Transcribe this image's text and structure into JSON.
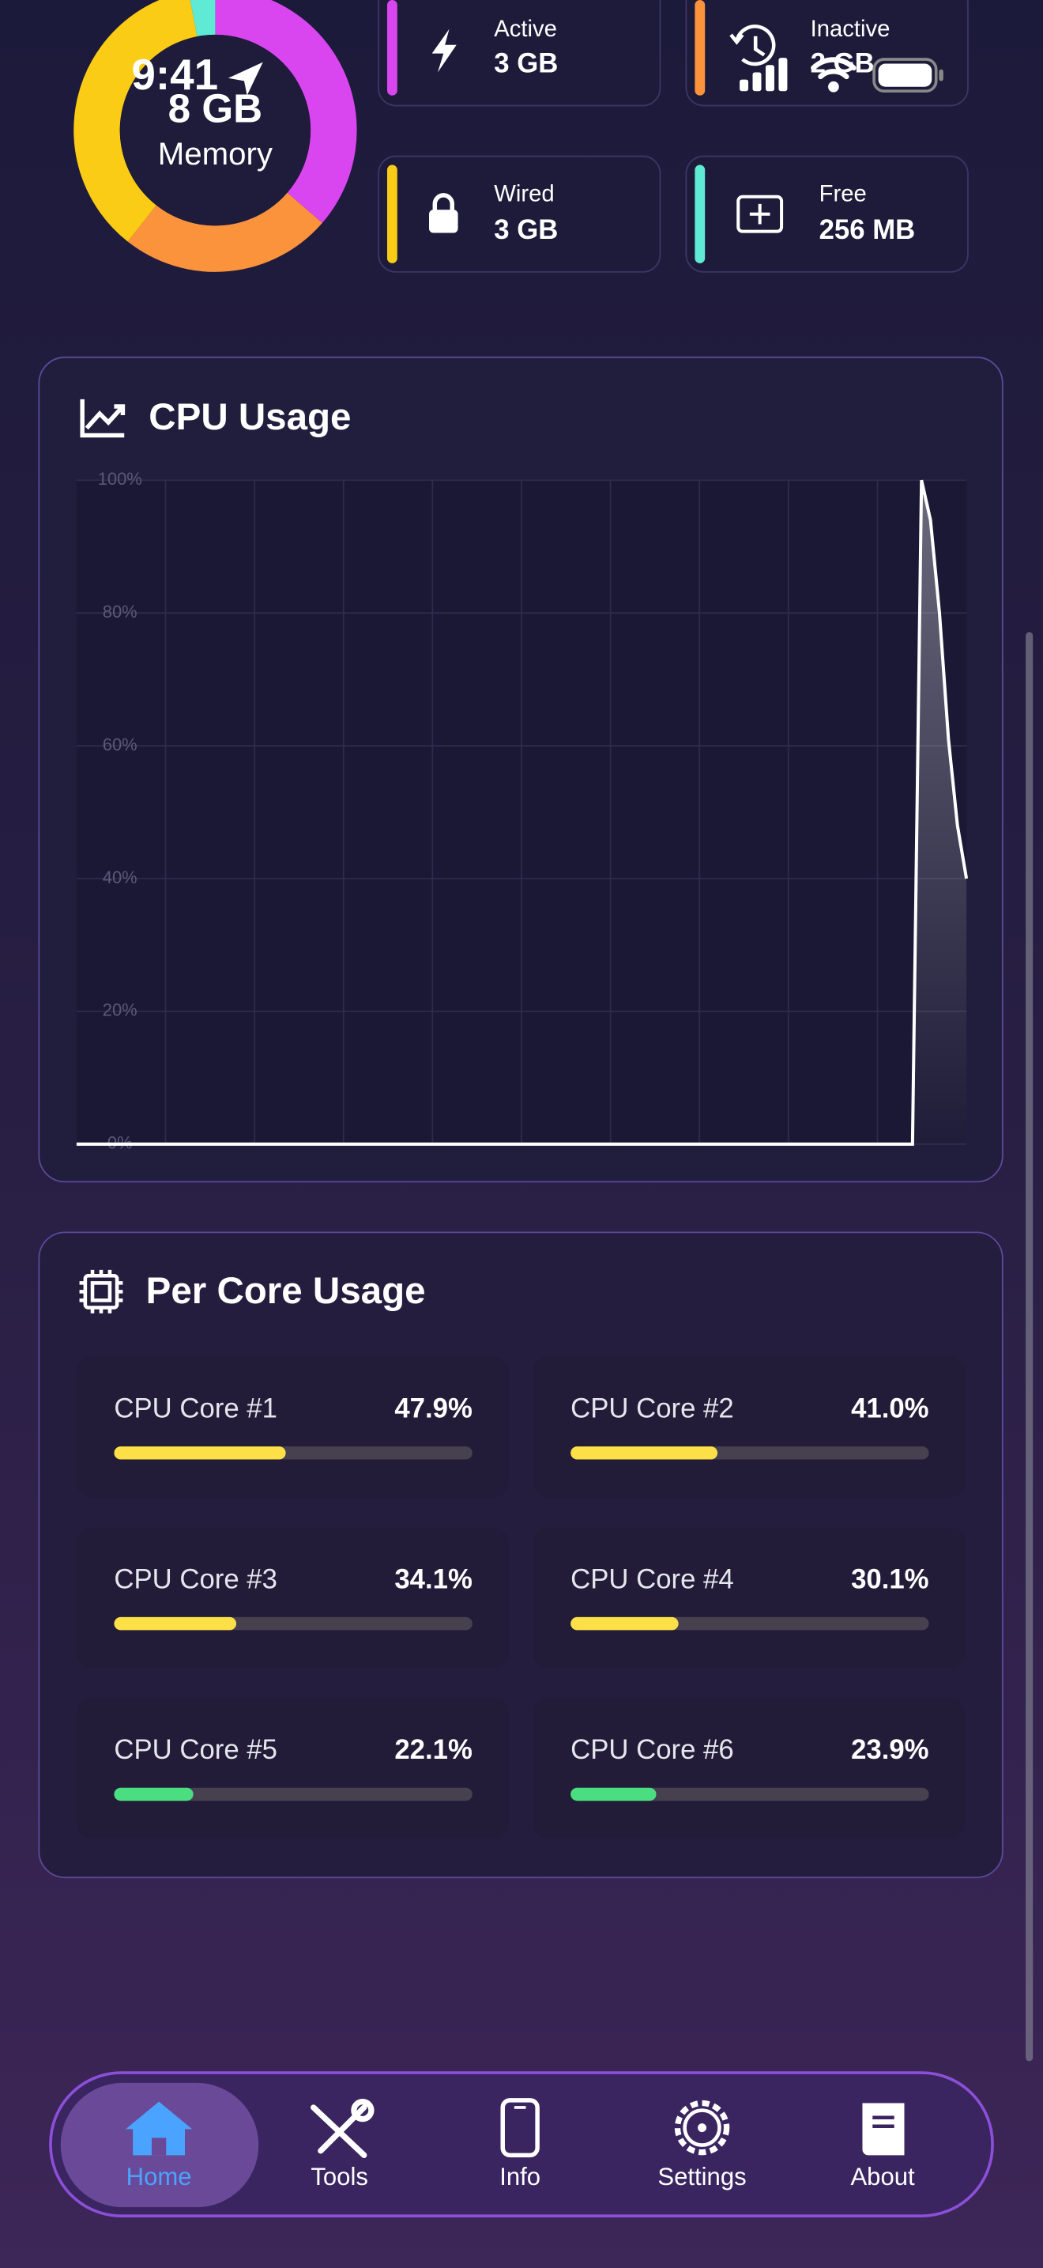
{
  "status_bar": {
    "time": "9:41"
  },
  "memory": {
    "total": "8 GB",
    "label": "Memory",
    "items": [
      {
        "name": "Active",
        "value": 3,
        "value_label": "3 GB",
        "color": "#d946ef"
      },
      {
        "name": "Inactive",
        "value": 2,
        "value_label": "2 GB",
        "color": "#fb923c"
      },
      {
        "name": "Wired",
        "value": 3,
        "value_label": "3 GB",
        "color": "#facc15"
      },
      {
        "name": "Free",
        "value": 0.25,
        "value_label": "256 MB",
        "color": "#5eead4"
      }
    ]
  },
  "chart_data": {
    "type": "area",
    "title": "CPU Usage",
    "color": "#ffffff",
    "grid": true,
    "ylim": [
      0,
      100
    ],
    "yticks": [
      {
        "value": 0,
        "label": "0%"
      },
      {
        "value": 20,
        "label": "20%"
      },
      {
        "value": 40,
        "label": "40%"
      },
      {
        "value": 60,
        "label": "60%"
      },
      {
        "value": 80,
        "label": "80%"
      },
      {
        "value": 100,
        "label": "100%"
      }
    ],
    "values": [
      0,
      0,
      0,
      0,
      0,
      0,
      0,
      0,
      0,
      0,
      0,
      0,
      0,
      0,
      0,
      0,
      0,
      0,
      0,
      0,
      0,
      0,
      0,
      0,
      0,
      0,
      0,
      0,
      0,
      0,
      0,
      0,
      0,
      0,
      0,
      0,
      0,
      0,
      0,
      0,
      0,
      0,
      0,
      0,
      0,
      0,
      0,
      0,
      0,
      0,
      0,
      0,
      0,
      0,
      0,
      0,
      0,
      0,
      0,
      0,
      0,
      0,
      0,
      0,
      0,
      0,
      0,
      0,
      0,
      0,
      0,
      0,
      0,
      0,
      0,
      0,
      0,
      0,
      0,
      0,
      0,
      0,
      0,
      0,
      0,
      0,
      0,
      0,
      0,
      0,
      0,
      0,
      0,
      0,
      100,
      94,
      80,
      61,
      48,
      40
    ]
  },
  "per_core": {
    "title": "Per Core Usage",
    "cores": [
      {
        "name": "CPU Core #1",
        "value": 47.9,
        "value_label": "47.9%",
        "color": "#fde047"
      },
      {
        "name": "CPU Core #2",
        "value": 41.0,
        "value_label": "41.0%",
        "color": "#fde047"
      },
      {
        "name": "CPU Core #3",
        "value": 34.1,
        "value_label": "34.1%",
        "color": "#fde047"
      },
      {
        "name": "CPU Core #4",
        "value": 30.1,
        "value_label": "30.1%",
        "color": "#fde047"
      },
      {
        "name": "CPU Core #5",
        "value": 22.1,
        "value_label": "22.1%",
        "color": "#4ade80"
      },
      {
        "name": "CPU Core #6",
        "value": 23.9,
        "value_label": "23.9%",
        "color": "#4ade80"
      }
    ]
  },
  "nav": {
    "tabs": [
      "Home",
      "Tools",
      "Info",
      "Settings",
      "About"
    ]
  }
}
